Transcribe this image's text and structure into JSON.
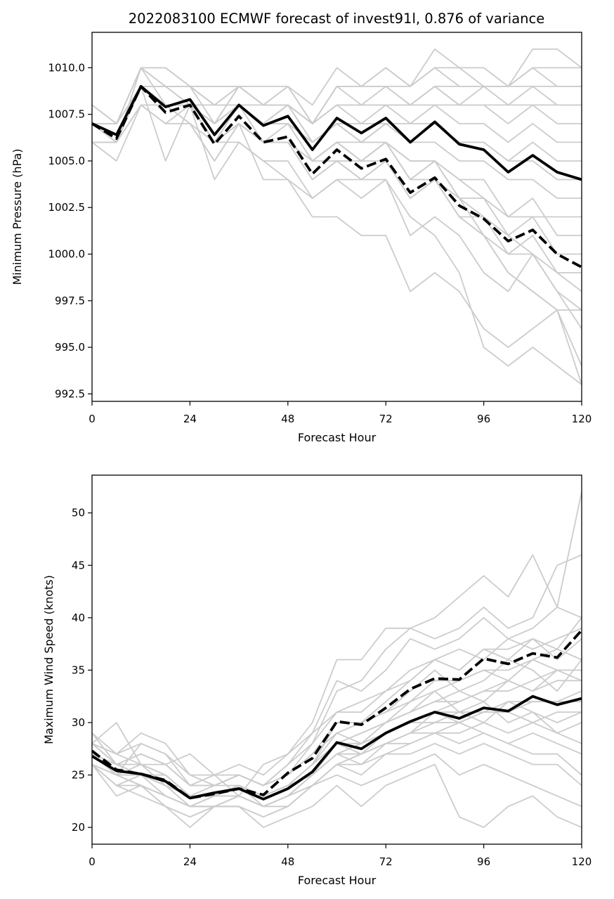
{
  "figure": {
    "title": "2022083100 ECMWF forecast of invest91l, 0.876 of variance"
  },
  "chart_data": [
    {
      "type": "line",
      "title": "2022083100 ECMWF forecast of invest91l, 0.876 of variance",
      "xlabel": "Forecast Hour",
      "ylabel": "Minimum Pressure (hPa)",
      "xlim": [
        0,
        120
      ],
      "ylim": [
        992.1,
        1011.9
      ],
      "xticks": [
        "0",
        "24",
        "48",
        "72",
        "96",
        "120"
      ],
      "yticks": [
        "992.5",
        "995.0",
        "997.5",
        "1000.0",
        "1002.5",
        "1005.0",
        "1007.5",
        "1010.0"
      ],
      "x": [
        0,
        6,
        12,
        18,
        24,
        30,
        36,
        42,
        48,
        54,
        60,
        66,
        72,
        78,
        84,
        90,
        96,
        102,
        108,
        114,
        120
      ],
      "grid": false,
      "legend": "none",
      "colors": {
        "ensemble": "#cccccc",
        "highlight": "#000000"
      },
      "ensemble": [
        [
          1007,
          1006,
          1009,
          1008,
          1008,
          1006,
          1007,
          1006,
          1006,
          1004,
          1005,
          1004,
          1005,
          1003,
          1004,
          1002,
          1001,
          999,
          998,
          997,
          993
        ],
        [
          1006,
          1005,
          1008,
          1007,
          1008,
          1006,
          1006,
          1005,
          1005,
          1003,
          1004,
          1004,
          1004,
          1002,
          1001,
          999,
          995,
          994,
          995,
          994,
          993
        ],
        [
          1007,
          1007,
          1009,
          1008,
          1007,
          1005,
          1007,
          1004,
          1004,
          1002,
          1002,
          1001,
          1001,
          998,
          999,
          998,
          996,
          995,
          996,
          997,
          994
        ],
        [
          1008,
          1007,
          1010,
          1010,
          1009,
          1008,
          1008,
          1007,
          1008,
          1006,
          1007,
          1006,
          1006,
          1004,
          1005,
          1003,
          1001,
          999,
          998,
          997,
          997
        ],
        [
          1007,
          1006,
          1009,
          1005,
          1008,
          1004,
          1006,
          1005,
          1004,
          1003,
          1004,
          1003,
          1004,
          1001,
          1002,
          1001,
          999,
          998,
          1000,
          999,
          998
        ],
        [
          1007,
          1006,
          1008,
          1007,
          1007,
          1005,
          1007,
          1006,
          1006,
          1004,
          1005,
          1005,
          1005,
          1003,
          1004,
          1002,
          1002,
          1000,
          1001,
          999,
          999
        ],
        [
          1006,
          1006,
          1009,
          1008,
          1008,
          1006,
          1008,
          1007,
          1007,
          1005,
          1006,
          1006,
          1006,
          1004,
          1004,
          1003,
          1003,
          1001,
          1002,
          1000,
          1000
        ],
        [
          1007,
          1006,
          1009,
          1008,
          1008,
          1006,
          1007,
          1006,
          1007,
          1005,
          1006,
          1005,
          1006,
          1005,
          1005,
          1004,
          1004,
          1002,
          1003,
          1001,
          1001
        ],
        [
          1006,
          1006,
          1008,
          1008,
          1007,
          1006,
          1007,
          1006,
          1006,
          1005,
          1006,
          1005,
          1006,
          1005,
          1005,
          1004,
          1003,
          1002,
          1002,
          1002,
          1002
        ],
        [
          1007,
          1007,
          1009,
          1008,
          1008,
          1007,
          1008,
          1007,
          1007,
          1006,
          1007,
          1006,
          1007,
          1006,
          1006,
          1005,
          1005,
          1004,
          1004,
          1003,
          1003
        ],
        [
          1006,
          1006,
          1009,
          1008,
          1008,
          1006,
          1008,
          1007,
          1007,
          1006,
          1007,
          1006,
          1007,
          1006,
          1007,
          1006,
          1006,
          1005,
          1005,
          1004,
          1004
        ],
        [
          1007,
          1006,
          1009,
          1008,
          1008,
          1007,
          1008,
          1007,
          1008,
          1006,
          1007,
          1007,
          1007,
          1007,
          1007,
          1006,
          1006,
          1005,
          1006,
          1005,
          1005
        ],
        [
          1007,
          1007,
          1009,
          1009,
          1008,
          1007,
          1008,
          1007,
          1008,
          1007,
          1008,
          1007,
          1008,
          1007,
          1008,
          1007,
          1007,
          1006,
          1007,
          1006,
          1006
        ],
        [
          1007,
          1006,
          1010,
          1008,
          1008,
          1007,
          1009,
          1008,
          1008,
          1007,
          1008,
          1008,
          1008,
          1008,
          1008,
          1008,
          1008,
          1007,
          1008,
          1007,
          1007
        ],
        [
          1007,
          1007,
          1009,
          1009,
          1008,
          1008,
          1008,
          1008,
          1008,
          1007,
          1008,
          1008,
          1008,
          1008,
          1009,
          1008,
          1008,
          1008,
          1008,
          1008,
          1008
        ],
        [
          1008,
          1007,
          1010,
          1009,
          1009,
          1007,
          1009,
          1008,
          1009,
          1007,
          1009,
          1008,
          1009,
          1008,
          1009,
          1008,
          1009,
          1008,
          1009,
          1008,
          1008
        ],
        [
          1007,
          1007,
          1009,
          1009,
          1009,
          1008,
          1009,
          1008,
          1008,
          1007,
          1009,
          1009,
          1009,
          1008,
          1009,
          1009,
          1009,
          1009,
          1009,
          1009,
          1009
        ],
        [
          1007,
          1007,
          1010,
          1009,
          1009,
          1008,
          1009,
          1008,
          1008,
          1007,
          1009,
          1009,
          1009,
          1009,
          1010,
          1009,
          1009,
          1009,
          1010,
          1009,
          1009
        ],
        [
          1007,
          1007,
          1010,
          1010,
          1009,
          1009,
          1009,
          1009,
          1009,
          1008,
          1010,
          1009,
          1010,
          1009,
          1010,
          1010,
          1010,
          1009,
          1010,
          1010,
          1010
        ],
        [
          1007,
          1006,
          1009,
          1009,
          1009,
          1009,
          1009,
          1008,
          1009,
          1007,
          1009,
          1009,
          1010,
          1009,
          1011,
          1010,
          1009,
          1009,
          1011,
          1011,
          1010
        ],
        [
          1006,
          1006,
          1009,
          1008,
          1008,
          1007,
          1008,
          1006,
          1006,
          1005,
          1006,
          1005,
          1006,
          1004,
          1005,
          1003,
          1002,
          1001,
          1000,
          998,
          997
        ],
        [
          1007,
          1006,
          1009,
          1008,
          1008,
          1006,
          1007,
          1006,
          1006,
          1005,
          1005,
          1004,
          1005,
          1003,
          1004,
          1002,
          1001,
          1000,
          1000,
          998,
          996
        ]
      ],
      "series": [
        {
          "style": "solid",
          "values": [
            1007.0,
            1006.4,
            1009.0,
            1007.9,
            1008.3,
            1006.4,
            1008.0,
            1006.9,
            1007.4,
            1005.6,
            1007.3,
            1006.5,
            1007.3,
            1006.0,
            1007.1,
            1005.9,
            1005.6,
            1004.4,
            1005.3,
            1004.4,
            1004.0
          ]
        },
        {
          "style": "dashed",
          "values": [
            1007.0,
            1006.2,
            1009.0,
            1007.6,
            1008.0,
            1005.9,
            1007.4,
            1006.0,
            1006.3,
            1004.3,
            1005.6,
            1004.6,
            1005.1,
            1003.3,
            1004.1,
            1002.6,
            1001.9,
            1000.7,
            1001.3,
            1000.0,
            999.3
          ]
        }
      ]
    },
    {
      "type": "line",
      "title": "",
      "xlabel": "Forecast Hour",
      "ylabel": "Maximum Wind Speed (knots)",
      "xlim": [
        0,
        120
      ],
      "ylim": [
        18.4,
        53.6
      ],
      "xticks": [
        "0",
        "24",
        "48",
        "72",
        "96",
        "120"
      ],
      "yticks": [
        "20",
        "25",
        "30",
        "35",
        "40",
        "45",
        "50"
      ],
      "x": [
        0,
        6,
        12,
        18,
        24,
        30,
        36,
        42,
        48,
        54,
        60,
        66,
        72,
        78,
        84,
        90,
        96,
        102,
        108,
        114,
        120
      ],
      "grid": false,
      "legend": "none",
      "colors": {
        "ensemble": "#cccccc",
        "highlight": "#000000"
      },
      "ensemble": [
        [
          27,
          25,
          25,
          24,
          23,
          23,
          24,
          22,
          23,
          25,
          28,
          27,
          29,
          30,
          31,
          30,
          31,
          31,
          32,
          32,
          33
        ],
        [
          28,
          30,
          26,
          25,
          23,
          23,
          24,
          23,
          24,
          26,
          30,
          30,
          32,
          34,
          36,
          35,
          37,
          36,
          38,
          37,
          40
        ],
        [
          26,
          25,
          28,
          27,
          24,
          24,
          25,
          24,
          25,
          28,
          33,
          34,
          37,
          39,
          40,
          42,
          44,
          42,
          46,
          41,
          52
        ],
        [
          29,
          26,
          27,
          26,
          27,
          25,
          23,
          26,
          27,
          30,
          36,
          36,
          39,
          39,
          38,
          39,
          41,
          39,
          40,
          45,
          46
        ],
        [
          27,
          25,
          24,
          23,
          22,
          22,
          22,
          21,
          22,
          24,
          26,
          26,
          28,
          29,
          31,
          32,
          33,
          34,
          33,
          35,
          35
        ],
        [
          26,
          25,
          24,
          22,
          21,
          22,
          23,
          22,
          23,
          25,
          27,
          28,
          30,
          31,
          33,
          34,
          35,
          35,
          36,
          37,
          36
        ],
        [
          28,
          27,
          29,
          28,
          25,
          24,
          25,
          24,
          26,
          29,
          34,
          33,
          35,
          38,
          37,
          38,
          40,
          38,
          39,
          41,
          40
        ],
        [
          27,
          26,
          26,
          25,
          23,
          23,
          24,
          23,
          24,
          26,
          28,
          29,
          30,
          32,
          33,
          31,
          32,
          30,
          31,
          29,
          30
        ],
        [
          26,
          24,
          23,
          22,
          21,
          22,
          22,
          21,
          22,
          24,
          26,
          27,
          28,
          29,
          30,
          30,
          31,
          31,
          30,
          31,
          31
        ],
        [
          27,
          26,
          25,
          24,
          22,
          22,
          23,
          22,
          23,
          25,
          27,
          26,
          27,
          28,
          29,
          28,
          29,
          28,
          27,
          27,
          25
        ],
        [
          28,
          26,
          26,
          25,
          23,
          23,
          24,
          23,
          24,
          26,
          29,
          28,
          30,
          31,
          32,
          32,
          33,
          33,
          34,
          35,
          34
        ],
        [
          27,
          25,
          24,
          23,
          22,
          23,
          23,
          22,
          23,
          24,
          25,
          24,
          25,
          26,
          27,
          25,
          26,
          25,
          24,
          23,
          22
        ],
        [
          26,
          23,
          24,
          22,
          20,
          22,
          22,
          20,
          21,
          22,
          24,
          22,
          24,
          25,
          26,
          21,
          20,
          22,
          23,
          21,
          20
        ],
        [
          28,
          26,
          27,
          26,
          24,
          24,
          25,
          24,
          25,
          27,
          30,
          30,
          31,
          33,
          35,
          33,
          34,
          36,
          35,
          33,
          36
        ],
        [
          27,
          26,
          25,
          25,
          23,
          24,
          24,
          23,
          24,
          26,
          28,
          29,
          30,
          31,
          32,
          33,
          32,
          34,
          33,
          34,
          34
        ],
        [
          29,
          27,
          28,
          27,
          25,
          25,
          26,
          25,
          27,
          29,
          31,
          32,
          33,
          35,
          36,
          37,
          36,
          38,
          37,
          38,
          39
        ],
        [
          27,
          25,
          25,
          24,
          22,
          23,
          23,
          22,
          23,
          25,
          27,
          28,
          29,
          30,
          30,
          31,
          30,
          32,
          31,
          30,
          31
        ],
        [
          26,
          24,
          24,
          23,
          22,
          22,
          23,
          22,
          22,
          24,
          26,
          27,
          28,
          28,
          29,
          29,
          30,
          29,
          30,
          29,
          28
        ],
        [
          28,
          27,
          26,
          26,
          24,
          24,
          25,
          24,
          25,
          27,
          29,
          30,
          31,
          32,
          34,
          34,
          35,
          34,
          36,
          35,
          35
        ],
        [
          27,
          25,
          26,
          24,
          23,
          23,
          24,
          23,
          24,
          25,
          27,
          27,
          28,
          29,
          29,
          30,
          29,
          28,
          29,
          28,
          27
        ],
        [
          26,
          24,
          25,
          23,
          22,
          22,
          23,
          22,
          23,
          24,
          26,
          25,
          27,
          27,
          28,
          27,
          28,
          27,
          26,
          26,
          24
        ],
        [
          28,
          26,
          27,
          26,
          24,
          25,
          25,
          24,
          26,
          28,
          31,
          31,
          33,
          34,
          36,
          35,
          37,
          37,
          38,
          36,
          38
        ],
        [
          27,
          26,
          25,
          24,
          23,
          23,
          24,
          23,
          24,
          26,
          28,
          28,
          29,
          30,
          31,
          31,
          31,
          32,
          32,
          32,
          32
        ]
      ],
      "series": [
        {
          "style": "solid",
          "values": [
            26.8,
            25.4,
            25.1,
            24.4,
            22.8,
            23.3,
            23.7,
            22.7,
            23.7,
            25.3,
            28.1,
            27.5,
            29.0,
            30.1,
            31.0,
            30.4,
            31.4,
            31.1,
            32.5,
            31.7,
            32.3
          ]
        },
        {
          "style": "dashed",
          "values": [
            27.3,
            25.5,
            25.1,
            24.5,
            22.8,
            23.2,
            23.7,
            23.1,
            25.2,
            26.6,
            30.1,
            29.8,
            31.4,
            33.2,
            34.2,
            34.1,
            36.1,
            35.6,
            36.6,
            36.2,
            38.8
          ]
        }
      ]
    }
  ]
}
